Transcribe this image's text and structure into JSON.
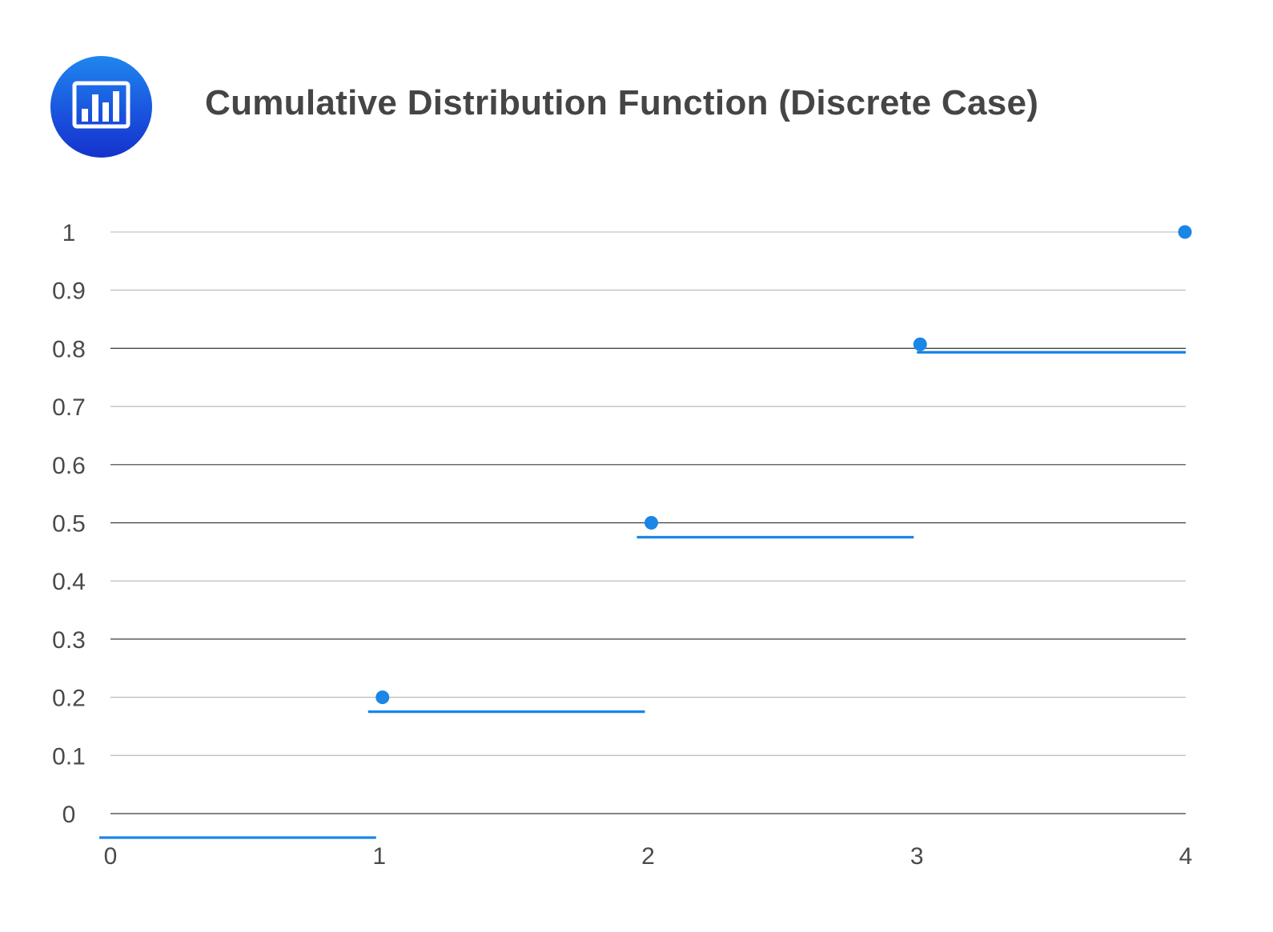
{
  "header": {
    "title": "Cumulative Distribution Function (Discrete Case)",
    "logo_icon": "bar-chart-icon"
  },
  "chart_data": {
    "type": "line",
    "title": "Cumulative Distribution Function (Discrete Case)",
    "xlabel": "",
    "ylabel": "",
    "xlim": [
      0,
      4
    ],
    "ylim": [
      0,
      1
    ],
    "x_ticks": [
      "0",
      "1",
      "2",
      "3",
      "4"
    ],
    "y_ticks": [
      "0",
      "0.1",
      "0.2",
      "0.3",
      "0.4",
      "0.5",
      "0.6",
      "0.7",
      "0.8",
      "0.9",
      "1"
    ],
    "grid": true,
    "legend": "none",
    "step_segments": [
      {
        "x_start": 0,
        "x_end": 1,
        "y": 0
      },
      {
        "x_start": 1,
        "x_end": 2,
        "y": 0.2
      },
      {
        "x_start": 2,
        "x_end": 3,
        "y": 0.5
      },
      {
        "x_start": 3,
        "x_end": 4,
        "y": 0.8
      }
    ],
    "points": [
      {
        "x": 1,
        "y": 0.2
      },
      {
        "x": 2,
        "y": 0.5
      },
      {
        "x": 3,
        "y": 0.8
      },
      {
        "x": 4,
        "y": 1
      }
    ],
    "colors": {
      "series": "#1a86e6",
      "grid": "#b5b5b5",
      "grid_dark": "#3a3a3a"
    }
  }
}
